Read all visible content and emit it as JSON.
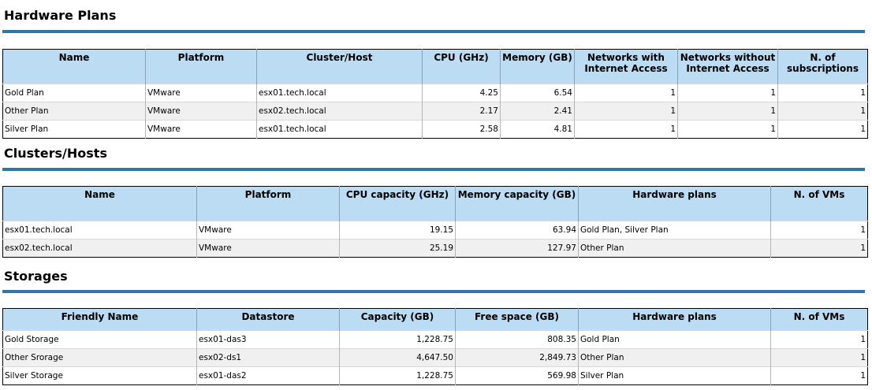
{
  "hardware_plans": {
    "title": "Hardware Plans",
    "columns": [
      "Name",
      "Platform",
      "Cluster/Host",
      "CPU (GHz)",
      "Memory (GB)",
      "Networks with Internet Access",
      "Networks without Internet Access",
      "N. of subscriptions"
    ],
    "rows": [
      [
        "Gold Plan",
        "VMware",
        "esx01.tech.local",
        "4.25",
        "6.54",
        "1",
        "1",
        "1"
      ],
      [
        "Other Plan",
        "VMware",
        "esx02.tech.local",
        "2.17",
        "2.41",
        "1",
        "1",
        "1"
      ],
      [
        "Silver Plan",
        "VMware",
        "esx01.tech.local",
        "2.58",
        "4.81",
        "1",
        "1",
        "1"
      ]
    ]
  },
  "clusters_hosts": {
    "title": "Clusters/Hosts",
    "columns": [
      "Name",
      "Platform",
      "CPU capacity (GHz)",
      "Memory capacity (GB)",
      "Hardware plans",
      "N. of VMs"
    ],
    "rows": [
      [
        "esx01.tech.local",
        "VMware",
        "19.15",
        "63.94",
        "Gold Plan, Silver Plan",
        "1"
      ],
      [
        "esx02.tech.local",
        "VMware",
        "25.19",
        "127.97",
        "Other Plan",
        "1"
      ]
    ]
  },
  "storages": {
    "title": "Storages",
    "columns": [
      "Friendly Name",
      "Datastore",
      "Capacity (GB)",
      "Free space (GB)",
      "Hardware plans",
      "N. of VMs"
    ],
    "rows": [
      [
        "Gold Storage",
        "esx01-das3",
        "1,228.75",
        "808.35",
        "Gold Plan",
        "1"
      ],
      [
        "Other Srorage",
        "esx02-ds1",
        "4,647.50",
        "2,849.73",
        "Other Plan",
        "1"
      ],
      [
        "Silver Storage",
        "esx01-das2",
        "1,228.75",
        "569.98",
        "Silver Plan",
        "1"
      ]
    ]
  }
}
